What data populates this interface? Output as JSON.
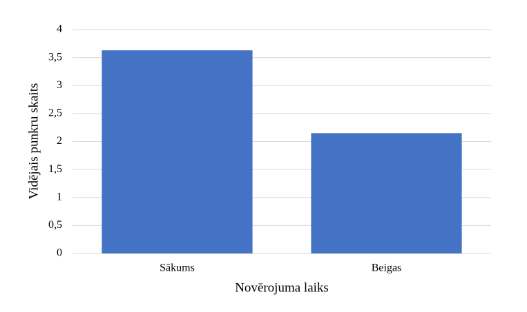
{
  "chart_data": {
    "type": "bar",
    "x_label": "Novērojuma laiks",
    "y_label": "Vidējais punkru skaits",
    "categories": [
      "Sākums",
      "Beigas"
    ],
    "values": [
      3.63,
      2.15
    ],
    "color": "#4472c4",
    "ylim": [
      0,
      4
    ],
    "yticks": [
      0,
      {
        "value": 0.5,
        "label": "0,5"
      },
      1,
      {
        "value": 1.5,
        "label": "1,5"
      },
      2,
      {
        "value": 2.5,
        "label": "2,5"
      },
      3,
      {
        "value": 3.5,
        "label": "3,5"
      },
      4
    ],
    "grid": true
  }
}
